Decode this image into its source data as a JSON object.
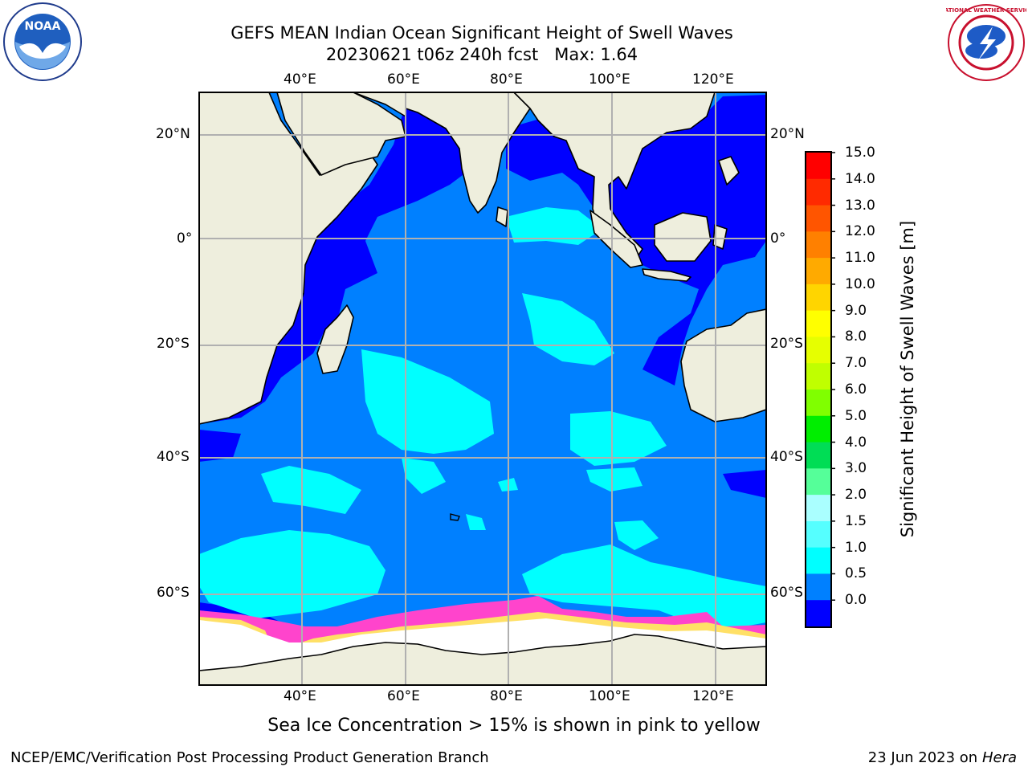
{
  "title": {
    "line1": "GEFS MEAN Indian Ocean Significant Height of Swell Waves",
    "line2": "20230621 t06z 240h fcst   Max: 1.64"
  },
  "map": {
    "lon_ticks": [
      "40°E",
      "60°E",
      "80°E",
      "100°E",
      "120°E"
    ],
    "lat_ticks": [
      "20°N",
      "0°",
      "20°S",
      "40°S",
      "60°S"
    ],
    "colors": {
      "land": "#eeeedd",
      "ice_white": "#ffffff",
      "ice_pink": "#ff44cc",
      "ice_yellow": "#ffe066",
      "grid": "#b0b0b0"
    }
  },
  "colorbar": {
    "label": "Significant Height of Swell Waves [m]",
    "ticks": [
      "15.0",
      "14.0",
      "13.0",
      "12.0",
      "11.0",
      "10.0",
      "9.0",
      "8.0",
      "7.0",
      "6.0",
      "5.0",
      "4.0",
      "3.0",
      "2.0",
      "1.5",
      "1.0",
      "0.5",
      "0.0"
    ],
    "colors": [
      "#ff0000",
      "#ff2a00",
      "#ff5500",
      "#ff8000",
      "#ffaa00",
      "#ffd500",
      "#ffff00",
      "#e6ff00",
      "#c0ff00",
      "#80ff00",
      "#00ee00",
      "#00dd55",
      "#55ff99",
      "#aaffff",
      "#55ffff",
      "#00ffff",
      "#0080ff",
      "#0000ff"
    ]
  },
  "caption": "Sea Ice Concentration > 15% is shown in pink to yellow",
  "footer": {
    "left": "NCEP/EMC/Verification Post Processing Product Generation Branch",
    "right_date": "23 Jun 2023 on",
    "right_host": "Hera"
  },
  "logos": {
    "noaa": "NOAA",
    "nws_text": "NATIONAL WEATHER SERVICE"
  }
}
